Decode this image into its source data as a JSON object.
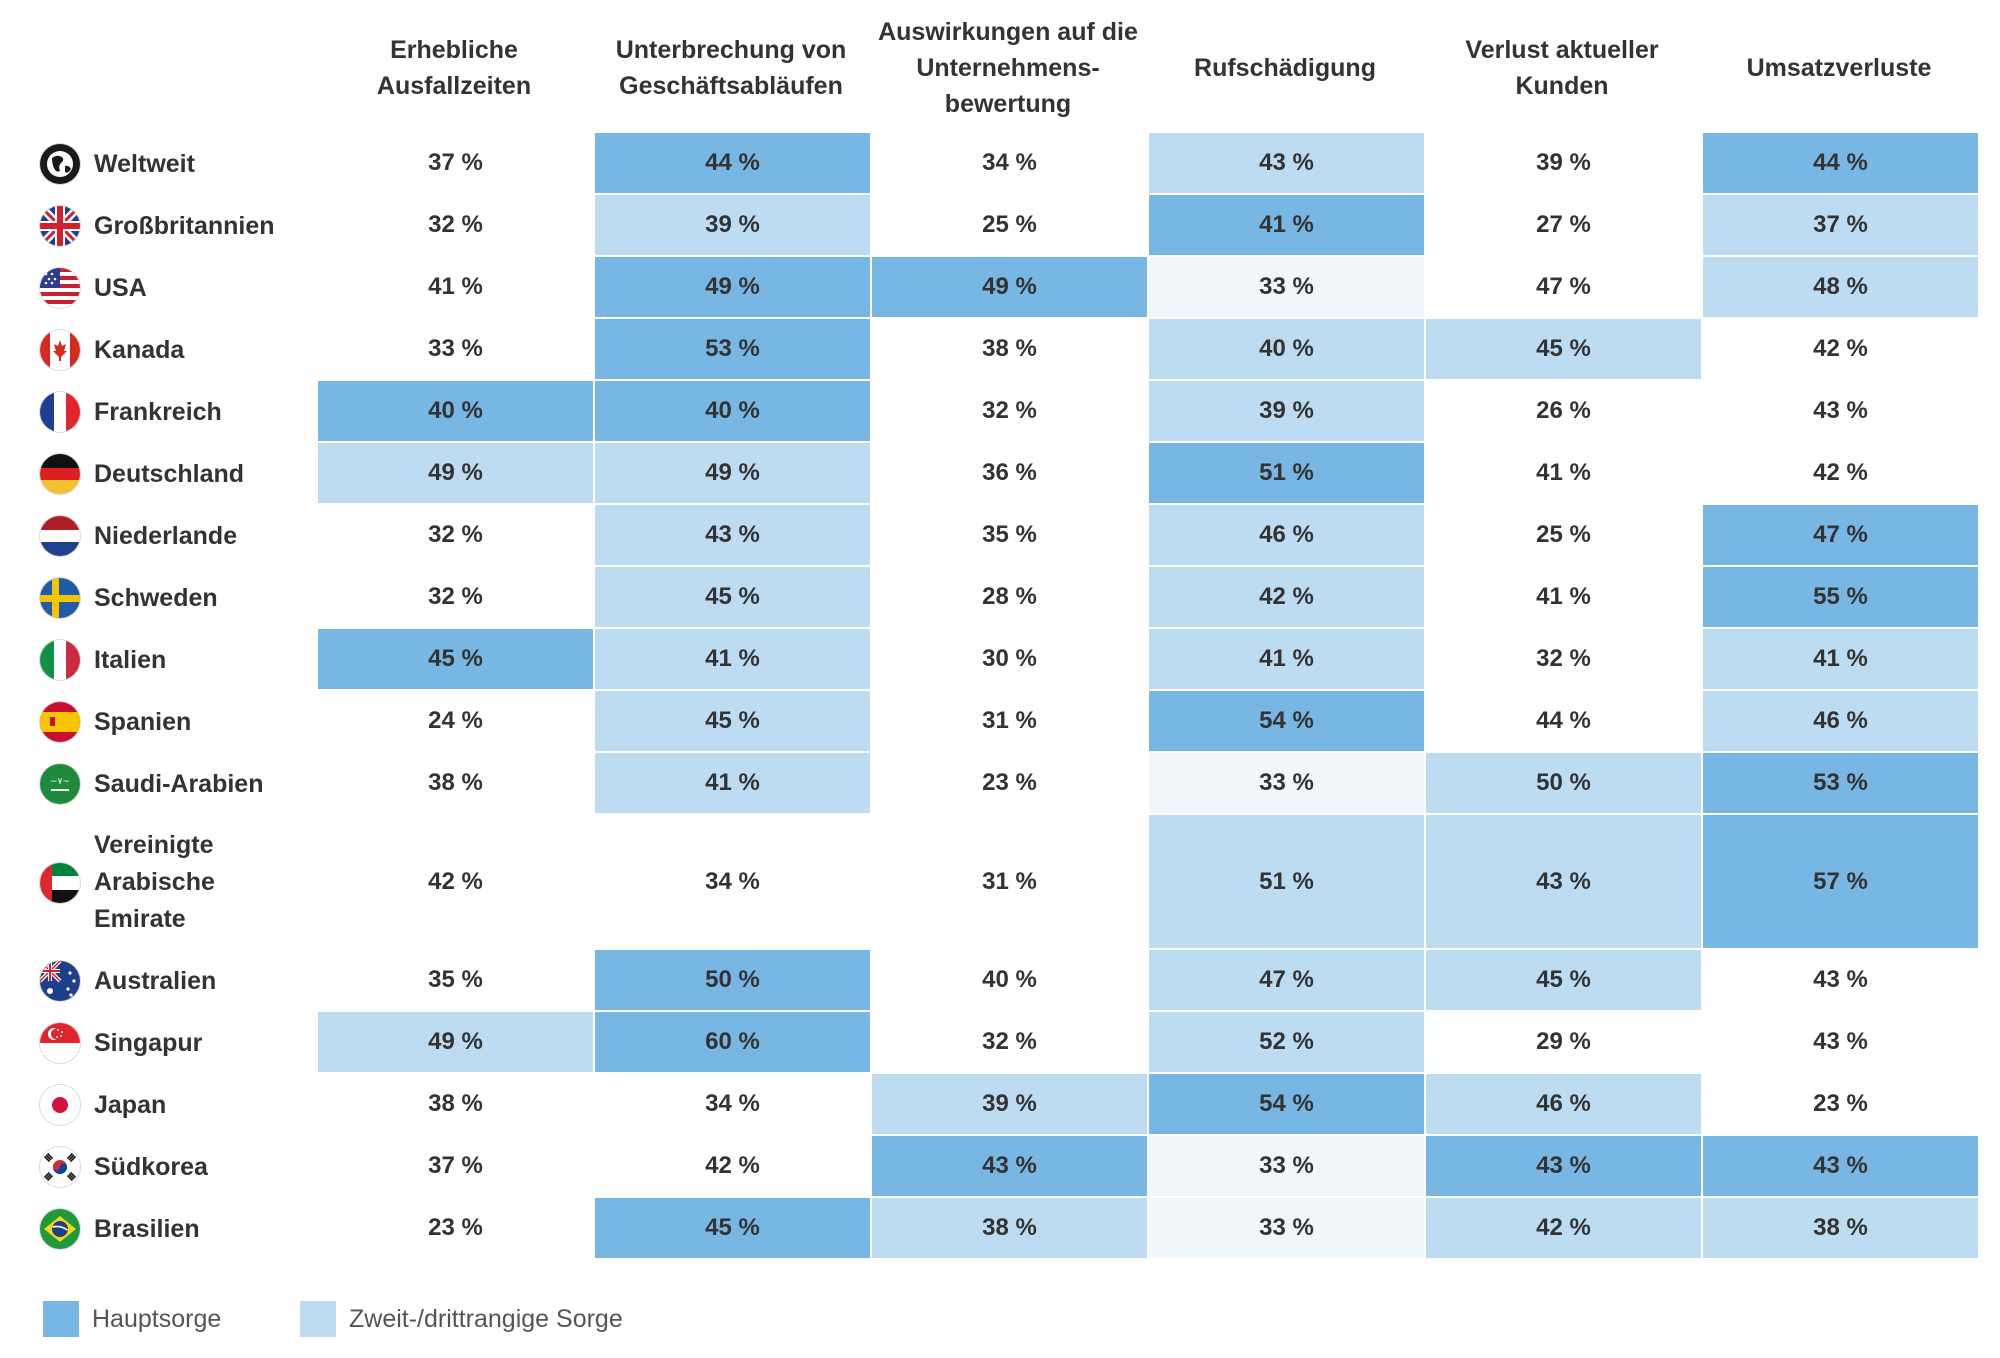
{
  "chart_data": {
    "type": "table",
    "columns": [
      "Erhebliche Ausfallzeiten",
      "Unterbrechung von Geschäftsabläufen",
      "Auswirkungen auf die Unternehmens-bewertung",
      "Rufschädigung",
      "Verlust aktueller Kunden",
      "Umsatzverluste"
    ],
    "rows": [
      {
        "name": "Weltweit",
        "flag": "globe-icon",
        "values": [
          "37 %",
          "44 %",
          "34 %",
          "43 %",
          "39 %",
          "44 %"
        ],
        "highlight": [
          0,
          2,
          0,
          1,
          0,
          2
        ]
      },
      {
        "name": "Großbritannien",
        "flag": "uk-flag-icon",
        "values": [
          "32 %",
          "39 %",
          "25 %",
          "41 %",
          "27 %",
          "37 %"
        ],
        "highlight": [
          0,
          1,
          0,
          2,
          0,
          1
        ]
      },
      {
        "name": "USA",
        "flag": "usa-flag-icon",
        "values": [
          "41 %",
          "49 %",
          "49 %",
          "33 %",
          "47 %",
          "48 %"
        ],
        "highlight": [
          0,
          2,
          2,
          3,
          0,
          1
        ]
      },
      {
        "name": "Kanada",
        "flag": "canada-flag-icon",
        "values": [
          "33 %",
          "53 %",
          "38 %",
          "40 %",
          "45 %",
          "42 %"
        ],
        "highlight": [
          0,
          2,
          0,
          1,
          1,
          0
        ]
      },
      {
        "name": "Frankreich",
        "flag": "france-flag-icon",
        "values": [
          "40 %",
          "40 %",
          "32 %",
          "39 %",
          "26 %",
          "43 %"
        ],
        "highlight": [
          2,
          2,
          0,
          1,
          0,
          0
        ]
      },
      {
        "name": "Deutschland",
        "flag": "germany-flag-icon",
        "values": [
          "49 %",
          "49 %",
          "36 %",
          "51 %",
          "41 %",
          "42 %"
        ],
        "highlight": [
          1,
          1,
          0,
          2,
          0,
          0
        ]
      },
      {
        "name": "Niederlande",
        "flag": "netherlands-flag-icon",
        "values": [
          "32 %",
          "43 %",
          "35 %",
          "46 %",
          "25 %",
          "47 %"
        ],
        "highlight": [
          0,
          1,
          0,
          1,
          0,
          2
        ]
      },
      {
        "name": "Schweden",
        "flag": "sweden-flag-icon",
        "values": [
          "32 %",
          "45 %",
          "28 %",
          "42 %",
          "41 %",
          "55 %"
        ],
        "highlight": [
          0,
          1,
          0,
          1,
          0,
          2
        ]
      },
      {
        "name": "Italien",
        "flag": "italy-flag-icon",
        "values": [
          "45 %",
          "41 %",
          "30 %",
          "41 %",
          "32 %",
          "41 %"
        ],
        "highlight": [
          2,
          1,
          0,
          1,
          0,
          1
        ]
      },
      {
        "name": "Spanien",
        "flag": "spain-flag-icon",
        "values": [
          "24 %",
          "45 %",
          "31 %",
          "54 %",
          "44 %",
          "46 %"
        ],
        "highlight": [
          0,
          1,
          0,
          2,
          0,
          1
        ]
      },
      {
        "name": "Saudi-Arabien",
        "flag": "saudi-arabia-flag-icon",
        "values": [
          "38 %",
          "41 %",
          "23 %",
          "33 %",
          "50 %",
          "53 %"
        ],
        "highlight": [
          0,
          1,
          0,
          3,
          1,
          2
        ]
      },
      {
        "name": "Vereinigte Arabische Emirate",
        "flag": "uae-flag-icon",
        "values": [
          "42 %",
          "34 %",
          "31 %",
          "51 %",
          "43 %",
          "57 %"
        ],
        "highlight": [
          0,
          0,
          0,
          1,
          1,
          2
        ]
      },
      {
        "name": "Australien",
        "flag": "australia-flag-icon",
        "values": [
          "35 %",
          "50 %",
          "40 %",
          "47 %",
          "45 %",
          "43 %"
        ],
        "highlight": [
          0,
          2,
          0,
          1,
          1,
          0
        ]
      },
      {
        "name": "Singapur",
        "flag": "singapore-flag-icon",
        "values": [
          "49 %",
          "60 %",
          "32 %",
          "52 %",
          "29 %",
          "43 %"
        ],
        "highlight": [
          1,
          2,
          0,
          1,
          0,
          0
        ]
      },
      {
        "name": "Japan",
        "flag": "japan-flag-icon",
        "values": [
          "38 %",
          "34 %",
          "39 %",
          "54 %",
          "46 %",
          "23 %"
        ],
        "highlight": [
          0,
          0,
          1,
          2,
          1,
          0
        ]
      },
      {
        "name": "Südkorea",
        "flag": "south-korea-flag-icon",
        "values": [
          "37 %",
          "42 %",
          "43 %",
          "33 %",
          "43 %",
          "43 %"
        ],
        "highlight": [
          0,
          0,
          2,
          3,
          2,
          2
        ]
      },
      {
        "name": "Brasilien",
        "flag": "brazil-flag-icon",
        "values": [
          "23 %",
          "45 %",
          "38 %",
          "33 %",
          "42 %",
          "38 %"
        ],
        "highlight": [
          0,
          2,
          1,
          3,
          1,
          1
        ]
      }
    ],
    "highlight_levels": {
      "0": "none",
      "1": "Zweit-/drittrangige Sorge",
      "2": "Hauptsorge",
      "3": "faint"
    },
    "legend": [
      {
        "label": "Hauptsorge",
        "color": "#78b7e4"
      },
      {
        "label": "Zweit-/drittrangige Sorge",
        "color": "#bddcf2"
      }
    ]
  },
  "colors": {
    "primary": "#78b7e4",
    "secondary": "#bddcf2",
    "faint": "#f1f6fb",
    "text": "#333333"
  }
}
